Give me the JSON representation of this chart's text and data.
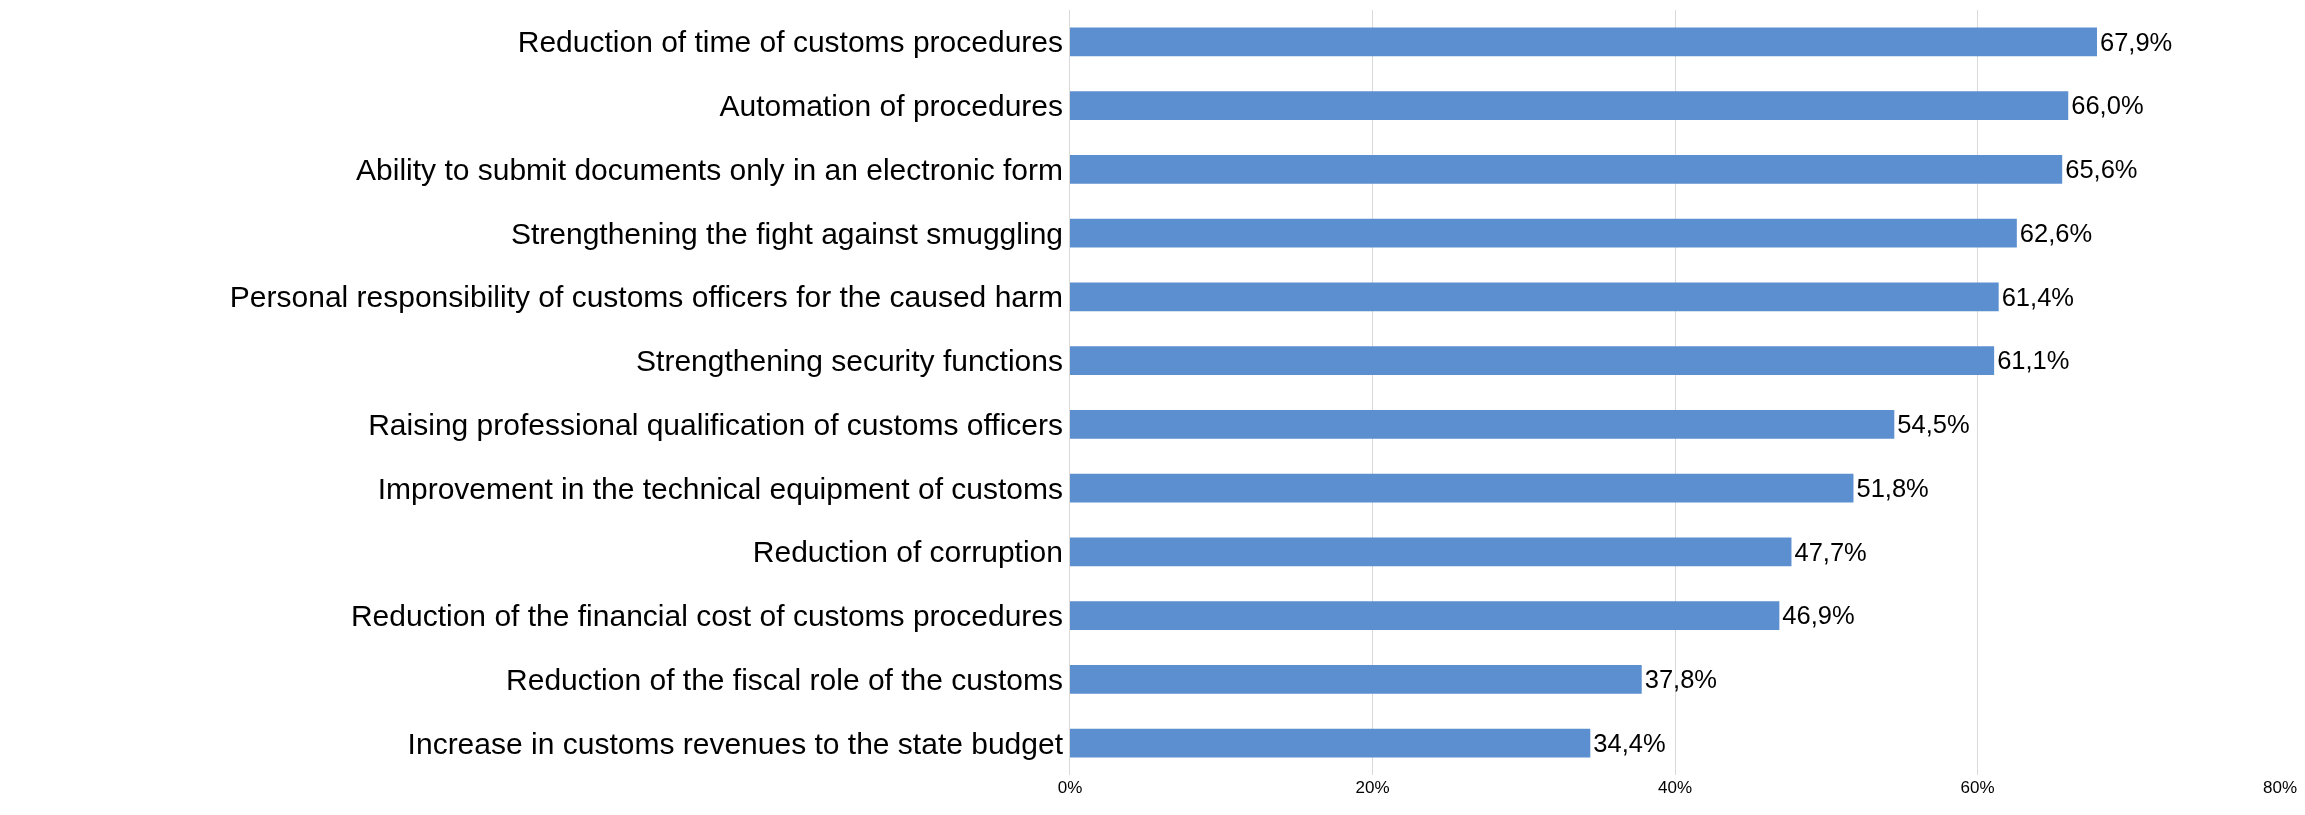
{
  "chart_data": {
    "type": "bar",
    "orientation": "horizontal",
    "categories": [
      "Reduction of time of customs procedures",
      "Automation of procedures",
      "Ability to submit documents only in an electronic form",
      "Strengthening the fight against smuggling",
      "Personal responsibility of customs officers for the caused harm",
      "Strengthening security functions",
      "Raising professional qualification of customs officers",
      "Improvement in the technical equipment of customs",
      "Reduction of corruption",
      "Reduction of the financial cost of customs procedures",
      "Reduction of the fiscal role of the customs",
      "Increase in customs revenues to the state budget"
    ],
    "values": [
      67.9,
      66.0,
      65.6,
      62.6,
      61.4,
      61.1,
      54.5,
      51.8,
      47.7,
      46.9,
      37.8,
      34.4
    ],
    "value_labels": [
      "67,9%",
      "66,0%",
      "65,6%",
      "62,6%",
      "61,4%",
      "61,1%",
      "54,5%",
      "51,8%",
      "47,7%",
      "46,9%",
      "37,8%",
      "34,4%"
    ],
    "color": "#5b8fd0",
    "xlim": [
      0,
      80
    ],
    "xticks": [
      {
        "value": 0,
        "label": "0%"
      },
      {
        "value": 20,
        "label": "20%"
      },
      {
        "value": 40,
        "label": "40%"
      },
      {
        "value": 60,
        "label": "60%"
      },
      {
        "value": 80,
        "label": "80%"
      }
    ],
    "grid": "x",
    "legend": false
  }
}
